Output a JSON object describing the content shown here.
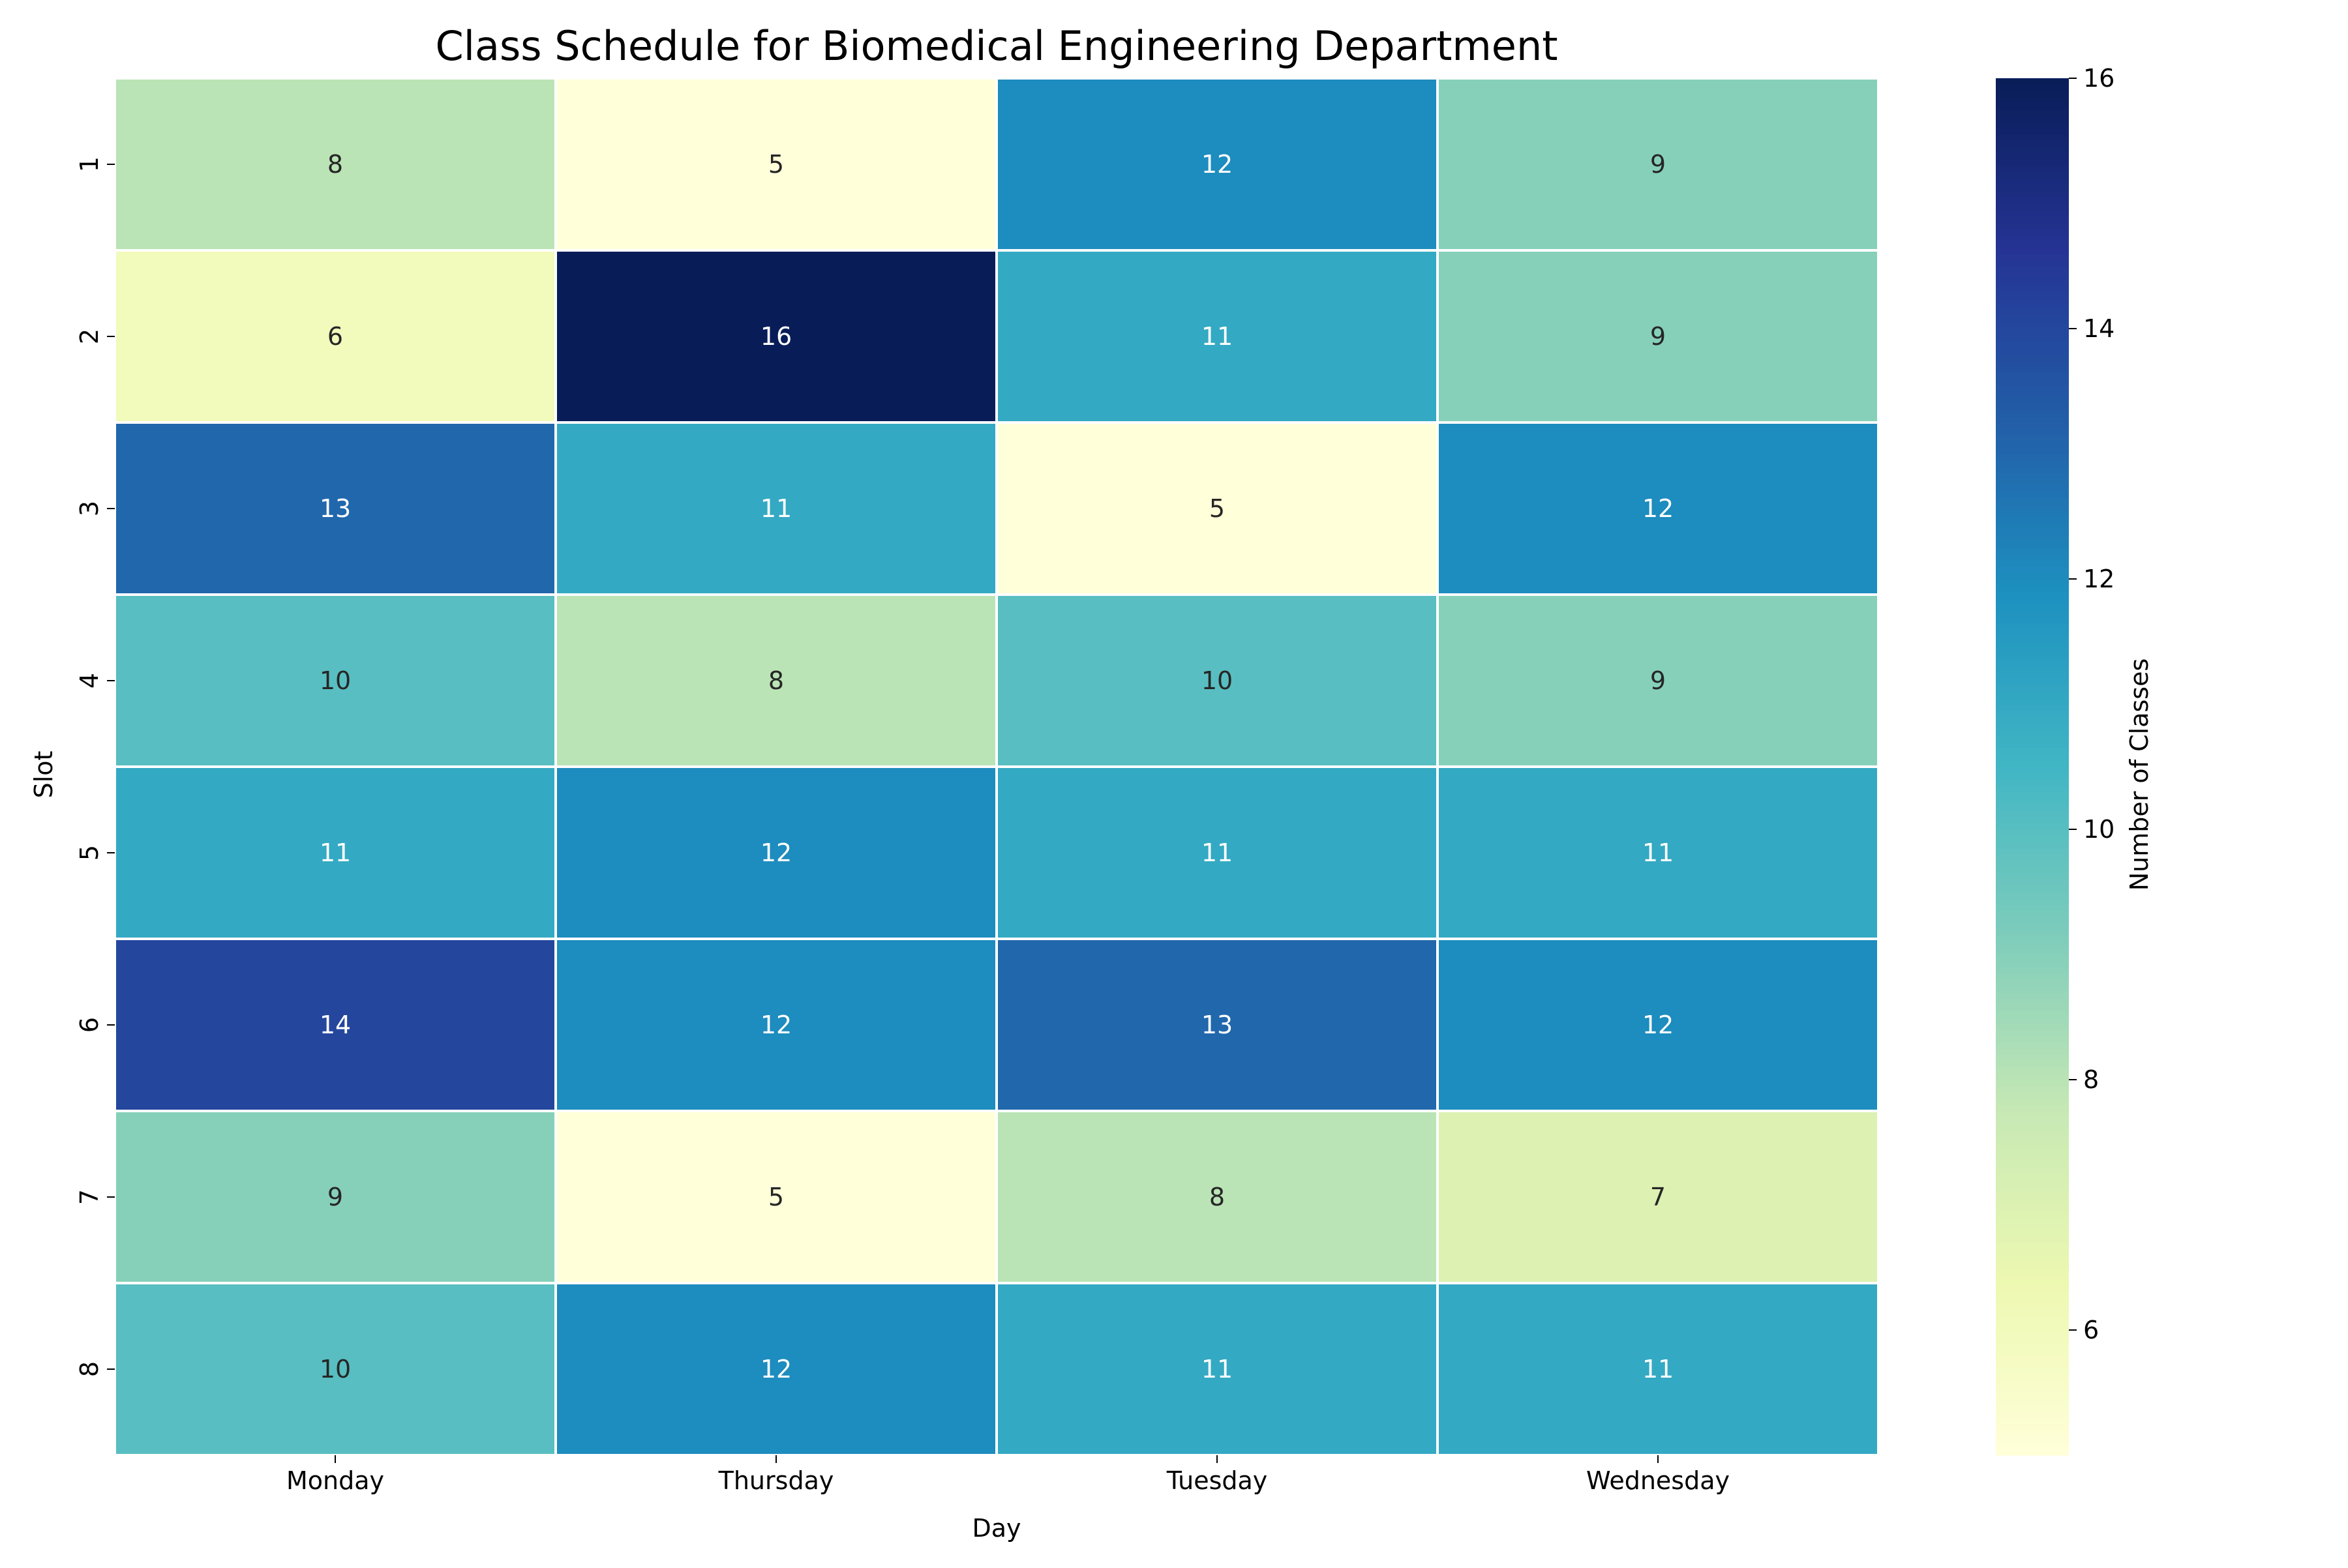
{
  "chart_data": {
    "type": "heatmap",
    "title": "Class Schedule for Biomedical Engineering Department",
    "xlabel": "Day",
    "ylabel": "Slot",
    "x_categories": [
      "Monday",
      "Thursday",
      "Tuesday",
      "Wednesday"
    ],
    "y_categories": [
      "1",
      "2",
      "3",
      "4",
      "5",
      "6",
      "7",
      "8"
    ],
    "values": [
      [
        8,
        5,
        12,
        9
      ],
      [
        6,
        16,
        11,
        9
      ],
      [
        13,
        11,
        5,
        12
      ],
      [
        10,
        8,
        10,
        9
      ],
      [
        11,
        12,
        11,
        11
      ],
      [
        14,
        12,
        13,
        12
      ],
      [
        9,
        5,
        8,
        7
      ],
      [
        10,
        12,
        11,
        11
      ]
    ],
    "colorbar": {
      "label": "Number of Classes",
      "min": 5,
      "max": 16,
      "ticks": [
        6,
        8,
        10,
        12,
        14,
        16
      ]
    },
    "colormap": "YlGnBu",
    "cell_border_color": "#ffffff"
  }
}
